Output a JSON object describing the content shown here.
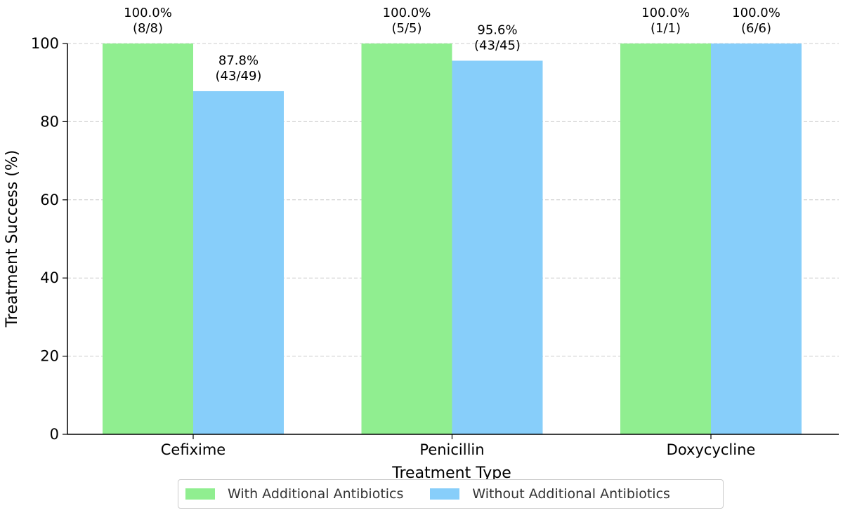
{
  "chart_data": {
    "type": "bar",
    "title": "",
    "xlabel": "Treatment Type",
    "ylabel": "Treatment Success (%)",
    "ylim": [
      0,
      100
    ],
    "yticks": [
      "0",
      "20",
      "40",
      "60",
      "80",
      "100"
    ],
    "grid": true,
    "categories": [
      "Cefixime",
      "Penicillin",
      "Doxycycline"
    ],
    "series": [
      {
        "name": "With Additional Antibiotics",
        "color": "#90ee90",
        "values": [
          100.0,
          100.0,
          100.0
        ],
        "labels": [
          "100.0%",
          "100.0%",
          "100.0%"
        ],
        "counts": [
          "(8/8)",
          "(5/5)",
          "(1/1)"
        ]
      },
      {
        "name": "Without Additional Antibiotics",
        "color": "#87cefa",
        "values": [
          87.8,
          95.6,
          100.0
        ],
        "labels": [
          "87.8%",
          "95.6%",
          "100.0%"
        ],
        "counts": [
          "(43/49)",
          "(43/45)",
          "(6/6)"
        ]
      }
    ],
    "legend_position": "bottom-center"
  }
}
